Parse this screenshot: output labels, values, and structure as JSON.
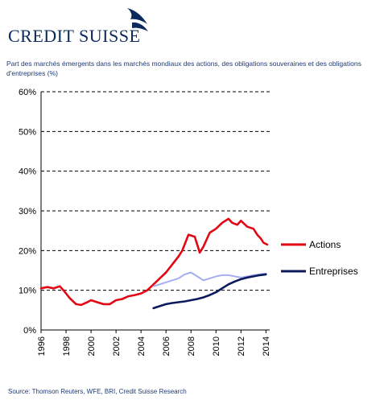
{
  "brand": {
    "name": "CREDIT SUISSE"
  },
  "header": {
    "title": "Part des marchés émergents dans les marchés mondiaux des actions, des obligations souveraines et des obligations d'entreprises (%)"
  },
  "footer": {
    "source": "Source: Thomson Reuters, WFE, BRI, Credit Suisse Research"
  },
  "chart_data": {
    "type": "line",
    "title": "Part des marchés émergents dans les marchés mondiaux des actions, des obligations souveraines et des obligations d'entreprises (%)",
    "xlabel": "",
    "ylabel": "",
    "xlim": [
      1996,
      2014.3
    ],
    "ylim": [
      0,
      60
    ],
    "x_ticks": [
      "1996",
      "1998",
      "2000",
      "2002",
      "2004",
      "2006",
      "2008",
      "2010",
      "2012",
      "2014"
    ],
    "y_ticks": [
      "0%",
      "10%",
      "20%",
      "30%",
      "40%",
      "50%",
      "60%"
    ],
    "grid": "horizontal dashed",
    "legend_position": "right",
    "series": [
      {
        "name": "Actions",
        "color": "#e30613",
        "points": [
          [
            1996.0,
            10.5
          ],
          [
            1996.5,
            10.8
          ],
          [
            1997.0,
            10.5
          ],
          [
            1997.5,
            11.0
          ],
          [
            1997.8,
            10.0
          ],
          [
            1998.3,
            8.0
          ],
          [
            1998.8,
            6.5
          ],
          [
            1999.2,
            6.3
          ],
          [
            1999.7,
            7.0
          ],
          [
            2000.0,
            7.5
          ],
          [
            2000.5,
            7.0
          ],
          [
            2001.0,
            6.5
          ],
          [
            2001.5,
            6.5
          ],
          [
            2002.0,
            7.5
          ],
          [
            2002.5,
            7.8
          ],
          [
            2003.0,
            8.5
          ],
          [
            2003.5,
            8.8
          ],
          [
            2004.0,
            9.2
          ],
          [
            2004.5,
            10.0
          ],
          [
            2005.0,
            11.5
          ],
          [
            2005.5,
            13.0
          ],
          [
            2006.0,
            14.5
          ],
          [
            2006.5,
            16.5
          ],
          [
            2007.0,
            18.5
          ],
          [
            2007.3,
            20.0
          ],
          [
            2007.8,
            24.0
          ],
          [
            2008.3,
            23.5
          ],
          [
            2008.7,
            19.5
          ],
          [
            2009.0,
            21.0
          ],
          [
            2009.5,
            24.5
          ],
          [
            2010.0,
            25.5
          ],
          [
            2010.5,
            27.0
          ],
          [
            2011.0,
            28.0
          ],
          [
            2011.3,
            27.0
          ],
          [
            2011.7,
            26.5
          ],
          [
            2012.0,
            27.5
          ],
          [
            2012.5,
            26.0
          ],
          [
            2013.0,
            25.5
          ],
          [
            2013.3,
            24.0
          ],
          [
            2013.6,
            23.0
          ],
          [
            2013.8,
            22.0
          ],
          [
            2014.1,
            21.5
          ]
        ]
      },
      {
        "name": "Obligations souveraines",
        "color": "#a7aef0",
        "points": [
          [
            2005.0,
            11.0
          ],
          [
            2005.5,
            11.5
          ],
          [
            2006.0,
            12.0
          ],
          [
            2006.5,
            12.5
          ],
          [
            2007.0,
            13.0
          ],
          [
            2007.5,
            14.0
          ],
          [
            2008.0,
            14.5
          ],
          [
            2008.5,
            13.5
          ],
          [
            2009.0,
            12.5
          ],
          [
            2009.5,
            13.0
          ],
          [
            2010.0,
            13.5
          ],
          [
            2010.5,
            13.8
          ],
          [
            2011.0,
            13.8
          ],
          [
            2011.5,
            13.5
          ],
          [
            2012.0,
            13.2
          ],
          [
            2012.5,
            13.5
          ],
          [
            2013.0,
            13.8
          ],
          [
            2013.5,
            14.0
          ],
          [
            2014.0,
            14.2
          ]
        ]
      },
      {
        "name": "Entreprises",
        "color": "#0b1a5c",
        "points": [
          [
            2005.0,
            5.5
          ],
          [
            2005.5,
            6.0
          ],
          [
            2006.0,
            6.5
          ],
          [
            2006.5,
            6.8
          ],
          [
            2007.0,
            7.0
          ],
          [
            2007.5,
            7.2
          ],
          [
            2008.0,
            7.5
          ],
          [
            2008.5,
            7.8
          ],
          [
            2009.0,
            8.2
          ],
          [
            2009.5,
            8.8
          ],
          [
            2010.0,
            9.5
          ],
          [
            2010.5,
            10.5
          ],
          [
            2011.0,
            11.5
          ],
          [
            2011.5,
            12.2
          ],
          [
            2012.0,
            12.8
          ],
          [
            2012.5,
            13.2
          ],
          [
            2013.0,
            13.5
          ],
          [
            2013.5,
            13.8
          ],
          [
            2014.0,
            14.0
          ]
        ]
      }
    ]
  }
}
